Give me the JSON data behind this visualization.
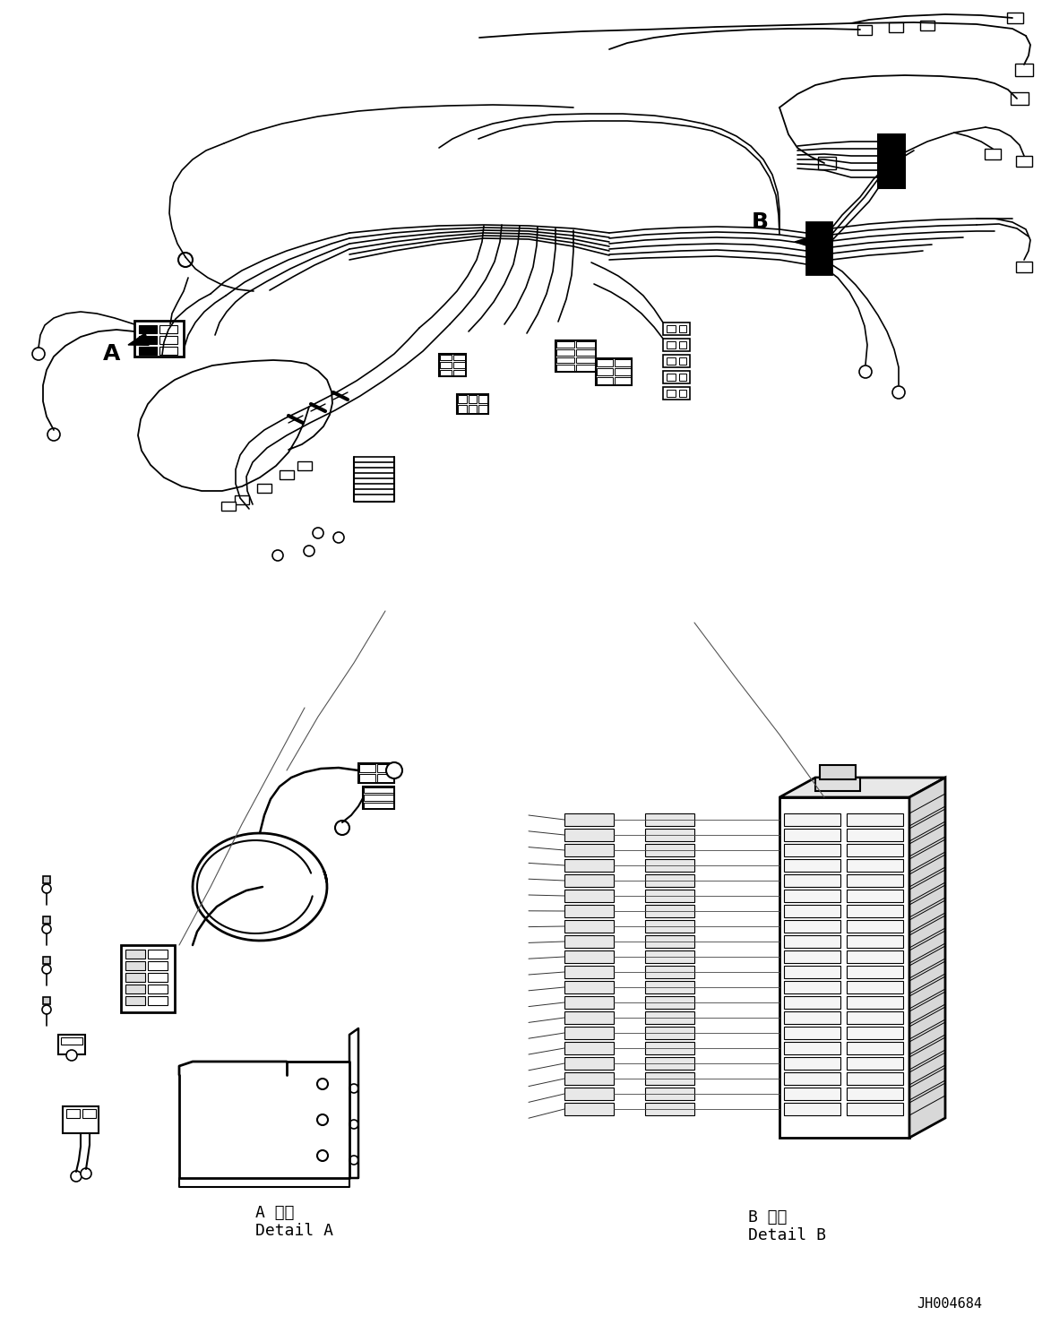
{
  "background_color": "#ffffff",
  "fig_width": 11.63,
  "fig_height": 14.88,
  "dpi": 100,
  "part_id": "JH004684",
  "label_A": "A",
  "label_B": "B",
  "detail_A_jp": "A 詳細",
  "detail_A_en": "Detail A",
  "detail_B_jp": "B 詳細",
  "detail_B_en": "Detail B",
  "text_color": "#000000",
  "line_color": "#000000"
}
